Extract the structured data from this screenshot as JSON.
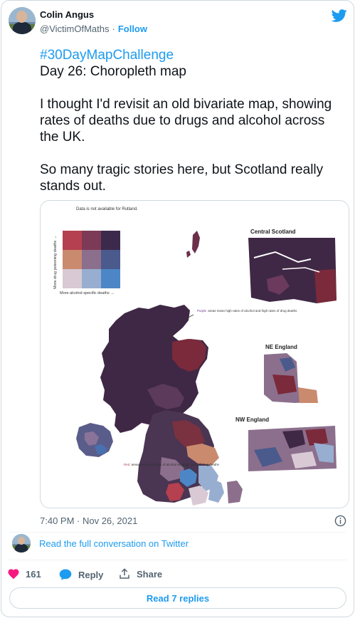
{
  "author": {
    "name": "Colin Angus",
    "handle": "@VictimOfMaths",
    "separator": "·",
    "follow_label": "Follow"
  },
  "tweet": {
    "hashtag": "#30DayMapChallenge",
    "line1": "Day 26: Choropleth map",
    "para1": "I thought I'd revisit an old bivariate map, showing rates of deaths due to drugs and alcohol across the UK.",
    "para2": "So many tragic stories here, but Scotland really stands out.",
    "timestamp": "7:40 PM · Nov 26, 2021"
  },
  "map_image": {
    "note": "Data is not available for Rutland.",
    "y_axis_label": "More drug poisoning deaths →",
    "x_axis_label": "More alcohol-specific deaths →",
    "inset_central": "Central Scotland",
    "inset_ne": "NE England",
    "inset_nw": "NW England",
    "annotation_purple_prefix": "Purple",
    "annotation_purple": "areas mean high rates of alcohol and high rates of drug deaths",
    "annotation_red_prefix": "Red",
    "annotation_red": "areas mean low rates of alcohol and high rates of drug deaths",
    "legend_colors": [
      "#b5404f",
      "#7d3a57",
      "#3c2a4d",
      "#c98a6e",
      "#8c6f8d",
      "#4a5a8c",
      "#d9c9d4",
      "#98aed0",
      "#4c86c6"
    ]
  },
  "conversation_link": "Read the full conversation on Twitter",
  "actions": {
    "likes": "161",
    "reply_label": "Reply",
    "share_label": "Share"
  },
  "read_replies": "Read 7 replies",
  "colors": {
    "accent": "#1d9bf0",
    "like": "#f91880",
    "text": "#0f1419",
    "muted": "#536471"
  }
}
